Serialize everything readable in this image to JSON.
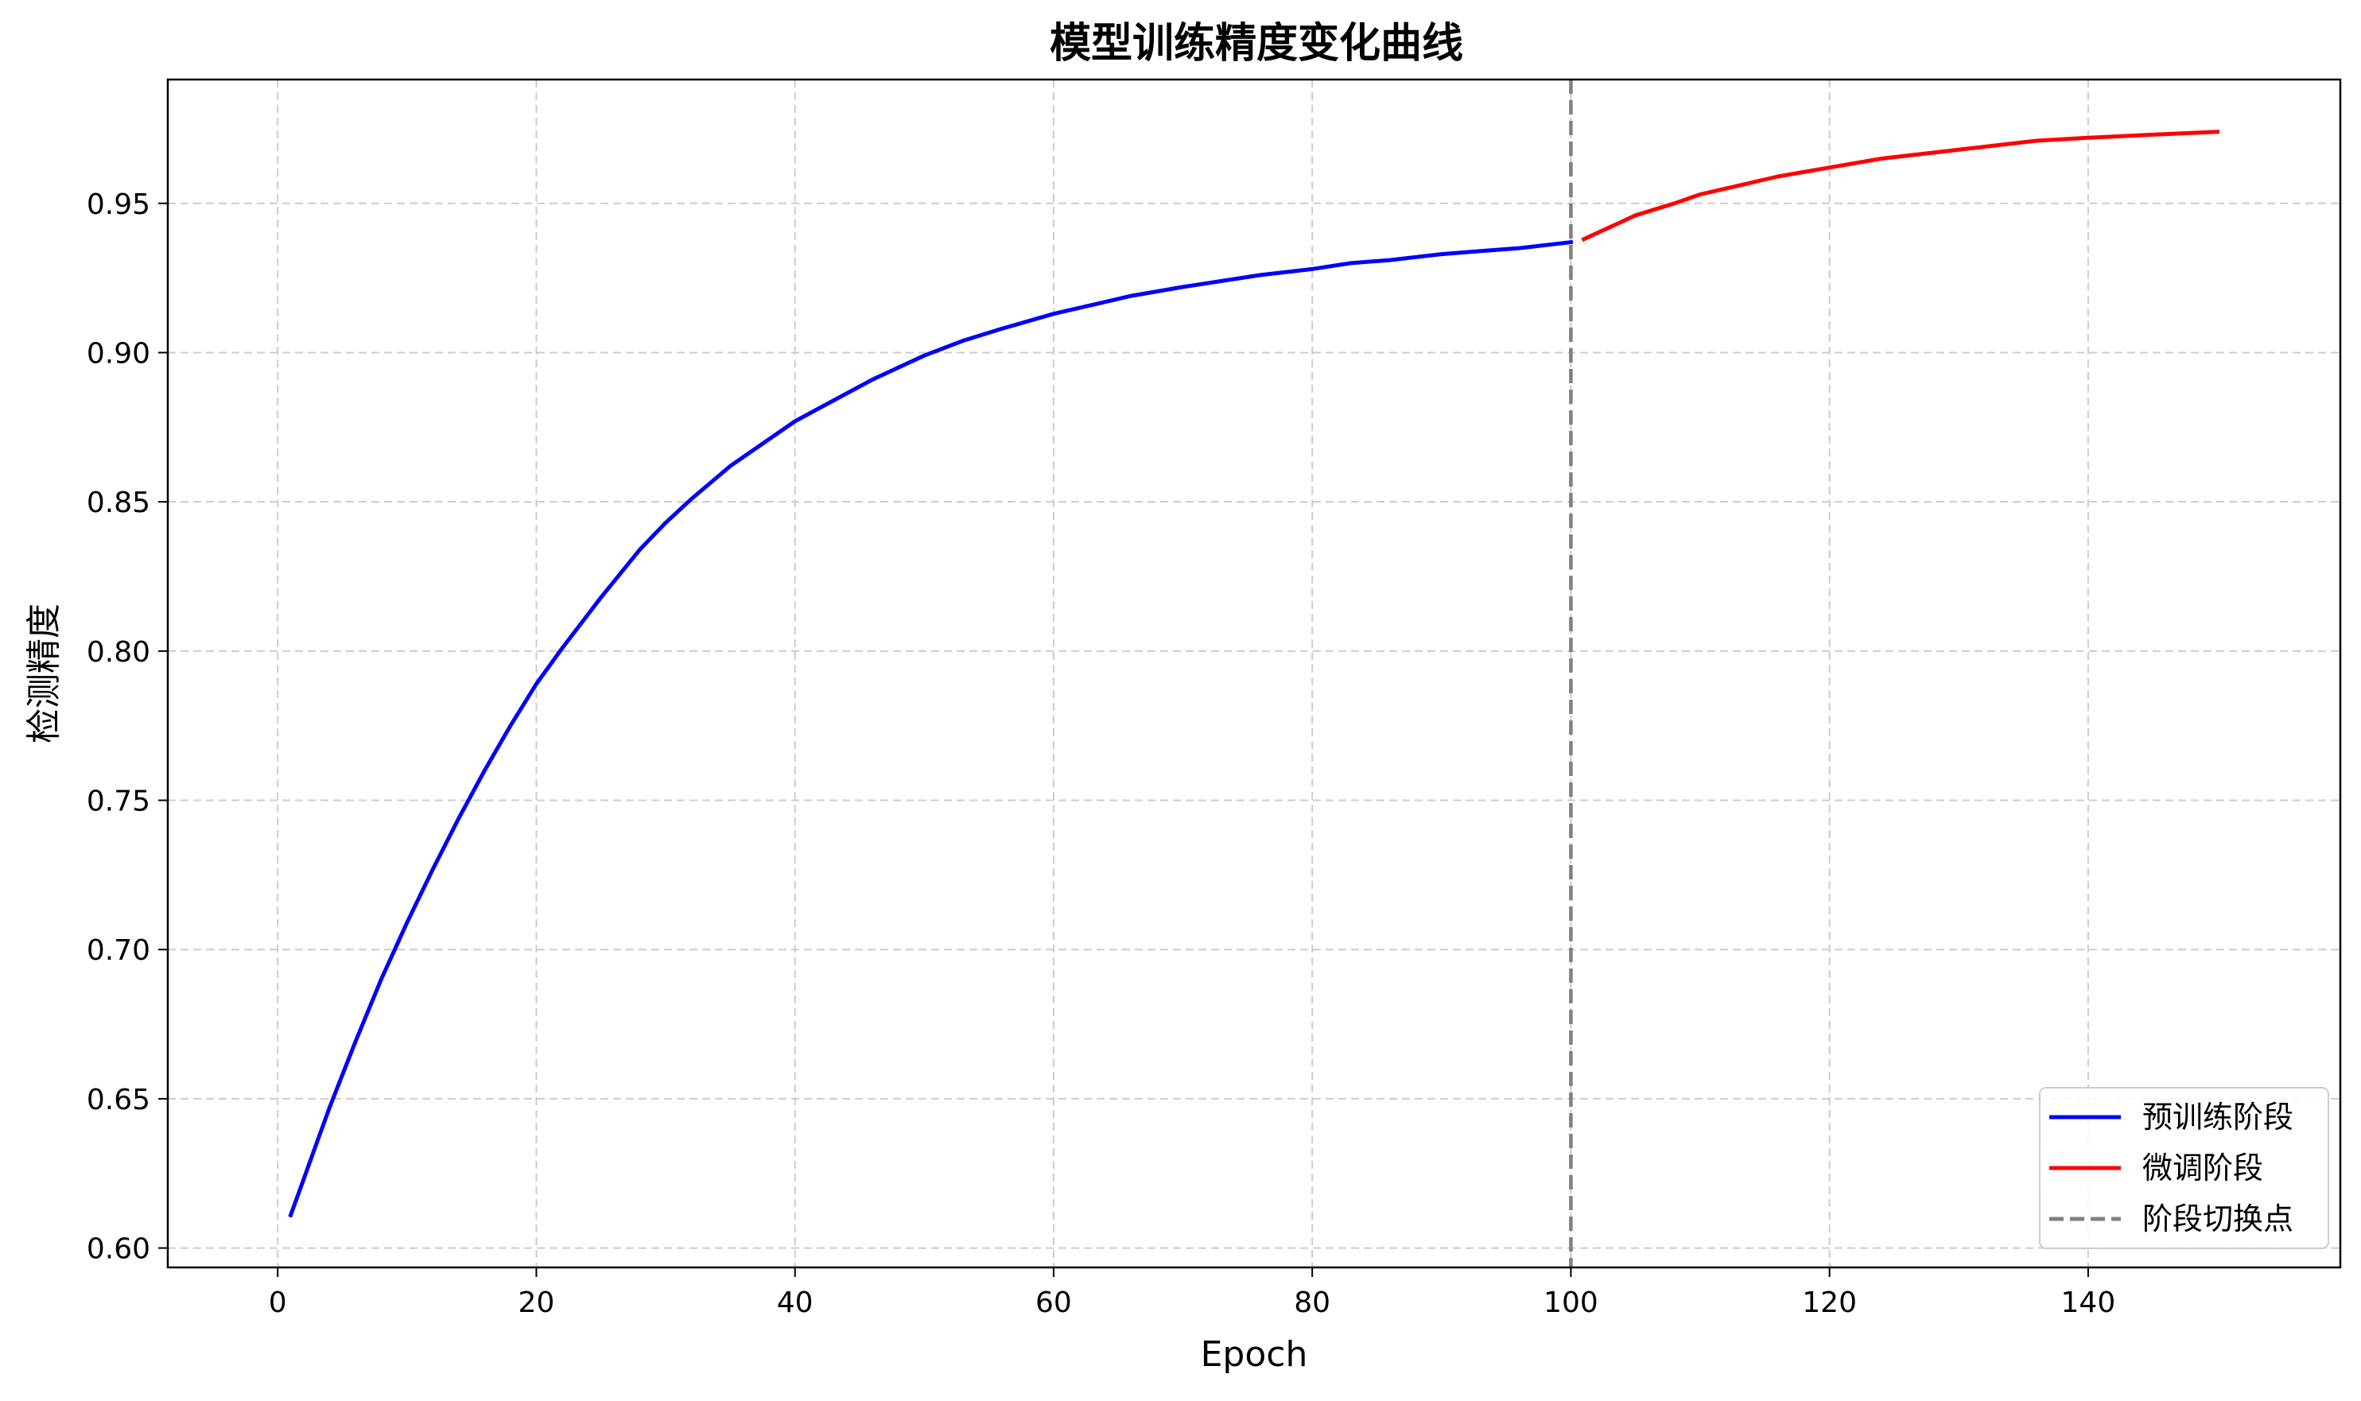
{
  "chart_data": {
    "type": "line",
    "title": "模型训练精度变化曲线",
    "xlabel": "Epoch",
    "ylabel": "检测精度",
    "xlim": [
      -8.5,
      159.5
    ],
    "ylim": [
      0.5935,
      0.9915
    ],
    "xticks": [
      0,
      20,
      40,
      60,
      80,
      100,
      120,
      140
    ],
    "yticks": [
      0.6,
      0.65,
      0.7,
      0.75,
      0.8,
      0.85,
      0.9,
      0.95
    ],
    "grid": true,
    "legend_position": "bottom-right",
    "series": [
      {
        "name": "预训练阶段",
        "color": "#0000ff",
        "style": "solid",
        "x": [
          1,
          2,
          3,
          4,
          5,
          6,
          8,
          10,
          12,
          14,
          16,
          18,
          20,
          22,
          25,
          28,
          30,
          32,
          35,
          38,
          40,
          43,
          46,
          50,
          53,
          56,
          60,
          63,
          66,
          70,
          73,
          76,
          80,
          83,
          86,
          90,
          93,
          96,
          100
        ],
        "y": [
          0.611,
          0.623,
          0.635,
          0.647,
          0.658,
          0.669,
          0.69,
          0.709,
          0.727,
          0.744,
          0.76,
          0.775,
          0.789,
          0.801,
          0.818,
          0.834,
          0.843,
          0.851,
          0.862,
          0.871,
          0.877,
          0.884,
          0.891,
          0.899,
          0.904,
          0.908,
          0.913,
          0.916,
          0.919,
          0.922,
          0.924,
          0.926,
          0.928,
          0.93,
          0.931,
          0.933,
          0.934,
          0.935,
          0.937
        ]
      },
      {
        "name": "微调阶段",
        "color": "#ff0000",
        "style": "solid",
        "x": [
          101,
          103,
          105,
          108,
          110,
          113,
          116,
          120,
          124,
          128,
          132,
          136,
          140,
          145,
          150
        ],
        "y": [
          0.938,
          0.942,
          0.946,
          0.95,
          0.953,
          0.956,
          0.959,
          0.962,
          0.965,
          0.967,
          0.969,
          0.971,
          0.972,
          0.973,
          0.974
        ]
      }
    ],
    "annotations": [
      {
        "type": "vline",
        "x": 100,
        "name": "阶段切换点",
        "color": "#808080",
        "style": "dashed"
      }
    ]
  }
}
